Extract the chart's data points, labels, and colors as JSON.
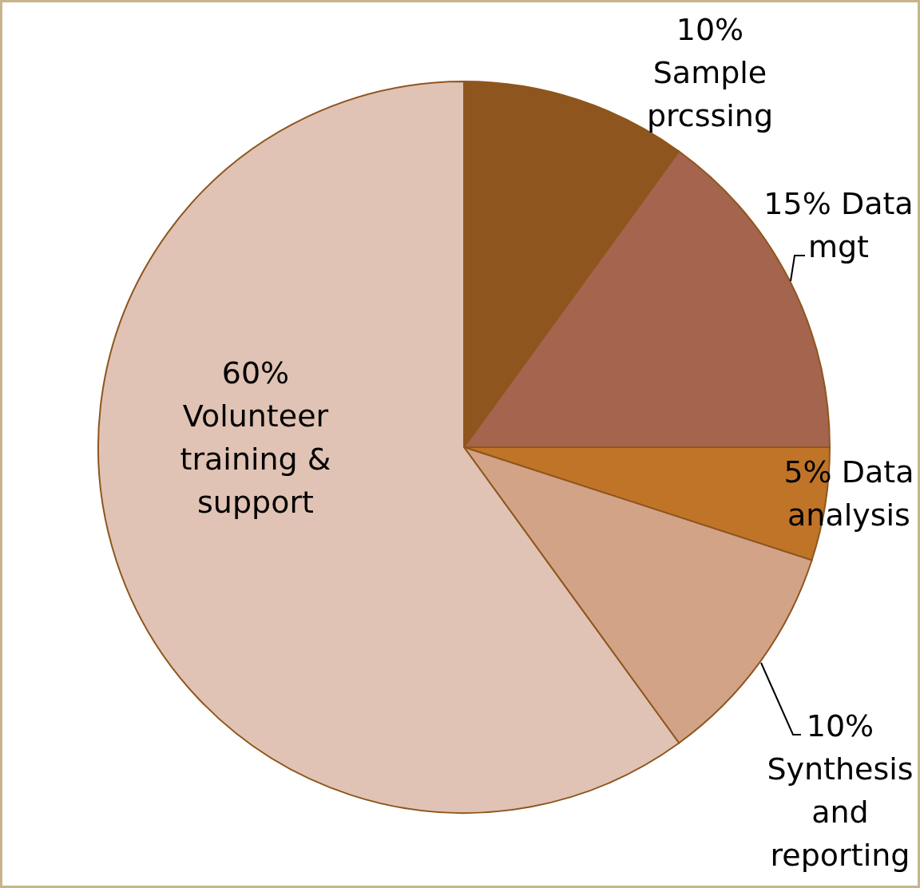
{
  "chart_data": {
    "type": "pie",
    "categories": [
      "Sample prcssing",
      "Data mgt",
      "Data analysis",
      "Synthesis and reporting",
      "Volunteer training & support"
    ],
    "values": [
      10,
      15,
      5,
      10,
      60
    ],
    "colors": [
      "#8e561e",
      "#a5644e",
      "#c07428",
      "#d2a387",
      "#e0c3b4"
    ],
    "value_labels": [
      "10%",
      "15%",
      "5%",
      "10%",
      "60%"
    ]
  }
}
